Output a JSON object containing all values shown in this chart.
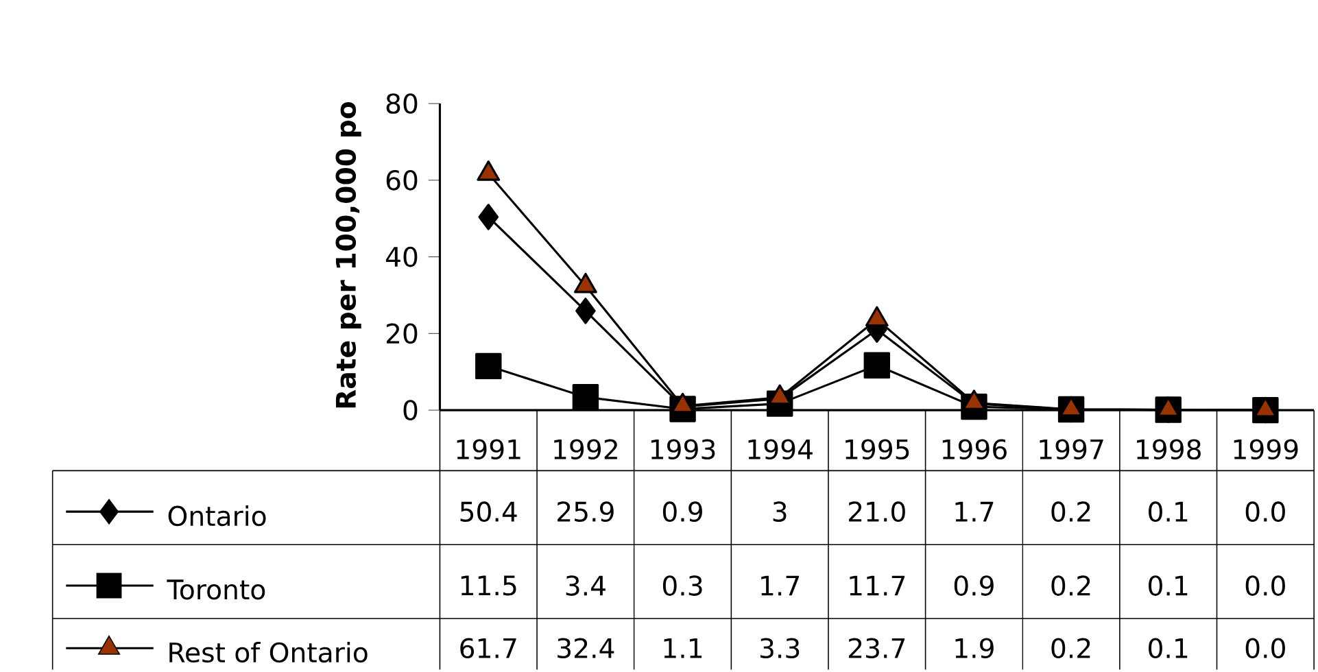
{
  "chart_data": {
    "type": "line",
    "ylabel": "Rate per 100,000 po",
    "categories": [
      "1991",
      "1992",
      "1993",
      "1994",
      "1995",
      "1996",
      "1997",
      "1998",
      "1999"
    ],
    "ylim": [
      0,
      80
    ],
    "yticks": [
      0,
      20,
      40,
      60,
      80
    ],
    "grid": false,
    "legend": "bottom left",
    "line_style": "solid",
    "series": [
      {
        "name": "Ontario",
        "color": "#000000",
        "marker": "diamond",
        "values": [
          50.4,
          25.9,
          0.9,
          3,
          21.0,
          1.7,
          0.2,
          0.1,
          0.0
        ],
        "value_labels": [
          "50.4",
          "25.9",
          "0.9",
          "3",
          "21.0",
          "1.7",
          "0.2",
          "0.1",
          "0.0"
        ]
      },
      {
        "name": "Toronto",
        "color": "#000000",
        "marker": "square",
        "values": [
          11.5,
          3.4,
          0.3,
          1.7,
          11.7,
          0.9,
          0.2,
          0.1,
          0.0
        ],
        "value_labels": [
          "11.5",
          "3.4",
          "0.3",
          "1.7",
          "11.7",
          "0.9",
          "0.2",
          "0.1",
          "0.0"
        ]
      },
      {
        "name": "Rest of Ontario",
        "color": "#993300",
        "marker": "triangle",
        "values": [
          61.7,
          32.4,
          1.1,
          3.3,
          23.7,
          1.9,
          0.2,
          0.1,
          0.0
        ],
        "value_labels": [
          "61.7",
          "32.4",
          "1.1",
          "3.3",
          "23.7",
          "1.9",
          "0.2",
          "0.1",
          "0.0"
        ]
      }
    ]
  }
}
